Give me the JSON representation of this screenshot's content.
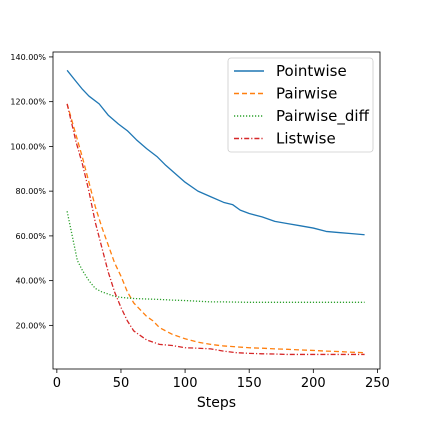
{
  "chart_data": {
    "type": "line",
    "title": "",
    "xlabel": "Steps",
    "ylabel": "",
    "xlim": [
      -3,
      252
    ],
    "ylim": [
      0.005,
      1.422
    ],
    "x_ticks": [
      0,
      50,
      100,
      150,
      200,
      250
    ],
    "x_tick_labels": [
      "0",
      "50",
      "100",
      "150",
      "200",
      "250"
    ],
    "y_ticks": [
      0.2,
      0.4,
      0.6,
      0.8,
      1.0,
      1.2,
      1.4
    ],
    "y_tick_labels": [
      "20.00%",
      "40.00%",
      "60.00%",
      "80.00%",
      "100.00%",
      "120.00%",
      "140.00%"
    ],
    "grid": false,
    "legend_position": "top-right",
    "series": [
      {
        "name": "Pointwise",
        "color": "#1f77b4",
        "linestyle": "solid",
        "x": [
          8,
          15,
          20,
          25,
          33,
          40,
          48,
          55,
          62,
          70,
          78,
          85,
          92,
          100,
          110,
          120,
          130,
          137,
          143,
          150,
          160,
          170,
          180,
          190,
          200,
          210,
          220,
          230,
          240
        ],
        "y": [
          1.34,
          1.29,
          1.255,
          1.225,
          1.19,
          1.14,
          1.1,
          1.07,
          1.03,
          0.99,
          0.955,
          0.915,
          0.88,
          0.84,
          0.8,
          0.775,
          0.75,
          0.74,
          0.715,
          0.7,
          0.685,
          0.665,
          0.655,
          0.645,
          0.635,
          0.62,
          0.615,
          0.61,
          0.605
        ]
      },
      {
        "name": "Pairwise",
        "color": "#ff7f0e",
        "linestyle": "dashed",
        "x": [
          8,
          15,
          20,
          25,
          30,
          35,
          40,
          45,
          50,
          55,
          60,
          65,
          70,
          75,
          80,
          90,
          100,
          110,
          120,
          130,
          140,
          150,
          160,
          170,
          180,
          190,
          200,
          210,
          220,
          230,
          240
        ],
        "y": [
          1.19,
          1.05,
          0.95,
          0.84,
          0.73,
          0.64,
          0.56,
          0.48,
          0.42,
          0.35,
          0.3,
          0.27,
          0.24,
          0.22,
          0.19,
          0.16,
          0.14,
          0.125,
          0.115,
          0.108,
          0.104,
          0.1,
          0.098,
          0.095,
          0.093,
          0.09,
          0.088,
          0.085,
          0.083,
          0.08,
          0.078
        ]
      },
      {
        "name": "Pairwise_diff",
        "color": "#2ca02c",
        "linestyle": "dotted",
        "x": [
          8,
          12,
          16,
          20,
          25,
          30,
          35,
          40,
          45,
          50,
          60,
          70,
          80,
          90,
          100,
          110,
          120,
          130,
          140,
          150,
          160,
          170,
          180,
          190,
          200,
          210,
          220,
          230,
          240
        ],
        "y": [
          0.71,
          0.6,
          0.49,
          0.445,
          0.4,
          0.365,
          0.35,
          0.34,
          0.33,
          0.325,
          0.32,
          0.318,
          0.316,
          0.313,
          0.311,
          0.308,
          0.305,
          0.305,
          0.304,
          0.303,
          0.303,
          0.303,
          0.303,
          0.303,
          0.303,
          0.303,
          0.303,
          0.303,
          0.303
        ]
      },
      {
        "name": "Listwise",
        "color": "#d62728",
        "linestyle": "dashdot",
        "x": [
          8,
          15,
          20,
          25,
          30,
          35,
          40,
          45,
          50,
          55,
          60,
          65,
          70,
          75,
          80,
          90,
          100,
          110,
          120,
          130,
          140,
          150,
          160,
          170,
          180,
          190,
          200,
          210,
          220,
          230,
          240
        ],
        "y": [
          1.19,
          1.02,
          0.92,
          0.8,
          0.66,
          0.55,
          0.44,
          0.35,
          0.28,
          0.22,
          0.175,
          0.155,
          0.135,
          0.125,
          0.115,
          0.11,
          0.1,
          0.098,
          0.095,
          0.085,
          0.078,
          0.075,
          0.073,
          0.072,
          0.07,
          0.07,
          0.07,
          0.07,
          0.07,
          0.07,
          0.07
        ]
      }
    ]
  }
}
